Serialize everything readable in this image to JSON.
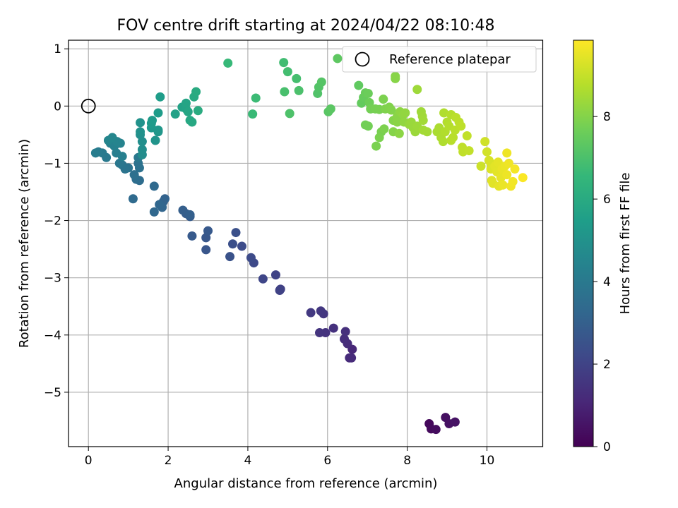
{
  "chart_data": {
    "type": "scatter",
    "title": "FOV centre drift starting at 2024/04/22 08:10:48",
    "xlabel": "Angular distance from reference (arcmin)",
    "ylabel": "Rotation from reference (arcmin)",
    "xlim": [
      -0.5,
      11.4
    ],
    "ylim": [
      -5.95,
      1.15
    ],
    "xticks": [
      "0",
      "2",
      "4",
      "6",
      "8",
      "10"
    ],
    "yticks": [
      "1",
      "0",
      "−1",
      "−2",
      "−3",
      "−4",
      "−5"
    ],
    "grid": true,
    "legend": {
      "label": "Reference platepar",
      "placement": "top-right"
    },
    "reference_point": {
      "x": 0,
      "y": 0
    },
    "colorbar": {
      "label": "Hours from first FF file",
      "range": [
        0,
        9.85
      ],
      "colormap": "viridis",
      "ticks": [
        "0",
        "2",
        "4",
        "6",
        "8"
      ]
    },
    "points": [
      {
        "x": 8.55,
        "y": -5.55,
        "c": 0.2
      },
      {
        "x": 8.6,
        "y": -5.64,
        "c": 0.25
      },
      {
        "x": 8.72,
        "y": -5.65,
        "c": 0.3
      },
      {
        "x": 8.96,
        "y": -5.44,
        "c": 0.4
      },
      {
        "x": 9.05,
        "y": -5.55,
        "c": 0.45
      },
      {
        "x": 9.2,
        "y": -5.52,
        "c": 0.5
      },
      {
        "x": 6.62,
        "y": -4.25,
        "c": 1.1
      },
      {
        "x": 6.6,
        "y": -4.4,
        "c": 1.15
      },
      {
        "x": 6.55,
        "y": -4.4,
        "c": 1.2
      },
      {
        "x": 6.5,
        "y": -4.15,
        "c": 1.25
      },
      {
        "x": 6.42,
        "y": -4.07,
        "c": 1.3
      },
      {
        "x": 6.45,
        "y": -3.94,
        "c": 1.35
      },
      {
        "x": 6.15,
        "y": -3.88,
        "c": 1.4
      },
      {
        "x": 5.95,
        "y": -3.96,
        "c": 1.45
      },
      {
        "x": 5.8,
        "y": -3.96,
        "c": 1.5
      },
      {
        "x": 5.9,
        "y": -3.63,
        "c": 1.55
      },
      {
        "x": 5.83,
        "y": -3.58,
        "c": 1.6
      },
      {
        "x": 5.58,
        "y": -3.61,
        "c": 1.65
      },
      {
        "x": 4.82,
        "y": -3.2,
        "c": 1.9
      },
      {
        "x": 4.8,
        "y": -3.22,
        "c": 1.95
      },
      {
        "x": 4.7,
        "y": -2.95,
        "c": 2.0
      },
      {
        "x": 4.38,
        "y": -3.02,
        "c": 2.1
      },
      {
        "x": 4.15,
        "y": -2.74,
        "c": 2.2
      },
      {
        "x": 4.08,
        "y": -2.65,
        "c": 2.25
      },
      {
        "x": 3.85,
        "y": -2.45,
        "c": 2.3
      },
      {
        "x": 3.62,
        "y": -2.41,
        "c": 2.4
      },
      {
        "x": 3.7,
        "y": -2.21,
        "c": 2.45
      },
      {
        "x": 3.55,
        "y": -2.63,
        "c": 2.5
      },
      {
        "x": 2.95,
        "y": -2.51,
        "c": 2.65
      },
      {
        "x": 2.95,
        "y": -2.3,
        "c": 2.7
      },
      {
        "x": 3.0,
        "y": -2.18,
        "c": 2.75
      },
      {
        "x": 2.6,
        "y": -2.27,
        "c": 2.8
      },
      {
        "x": 2.55,
        "y": -1.93,
        "c": 2.85
      },
      {
        "x": 2.45,
        "y": -1.88,
        "c": 2.9
      },
      {
        "x": 2.37,
        "y": -1.82,
        "c": 2.95
      },
      {
        "x": 2.55,
        "y": -1.9,
        "c": 3.0
      },
      {
        "x": 1.92,
        "y": -1.62,
        "c": 3.1
      },
      {
        "x": 1.88,
        "y": -1.67,
        "c": 3.15
      },
      {
        "x": 1.85,
        "y": -1.77,
        "c": 3.2
      },
      {
        "x": 1.78,
        "y": -1.72,
        "c": 3.25
      },
      {
        "x": 1.65,
        "y": -1.85,
        "c": 3.3
      },
      {
        "x": 1.65,
        "y": -1.4,
        "c": 3.35
      },
      {
        "x": 1.12,
        "y": -1.62,
        "c": 3.4
      },
      {
        "x": 1.28,
        "y": -1.3,
        "c": 3.5
      },
      {
        "x": 1.2,
        "y": -1.28,
        "c": 3.55
      },
      {
        "x": 1.15,
        "y": -1.2,
        "c": 3.6
      },
      {
        "x": 1.28,
        "y": -1.08,
        "c": 3.65
      },
      {
        "x": 1.25,
        "y": -1.0,
        "c": 3.7
      },
      {
        "x": 1.0,
        "y": -1.08,
        "c": 3.75
      },
      {
        "x": 0.92,
        "y": -1.1,
        "c": 3.8
      },
      {
        "x": 0.85,
        "y": -1.03,
        "c": 3.85
      },
      {
        "x": 0.78,
        "y": -1.0,
        "c": 3.9
      },
      {
        "x": 1.25,
        "y": -0.9,
        "c": 3.95
      },
      {
        "x": 0.45,
        "y": -0.9,
        "c": 4.0
      },
      {
        "x": 0.35,
        "y": -0.82,
        "c": 4.05
      },
      {
        "x": 0.25,
        "y": -0.8,
        "c": 4.1
      },
      {
        "x": 0.18,
        "y": -0.82,
        "c": 4.15
      },
      {
        "x": 0.7,
        "y": -0.82,
        "c": 4.2
      },
      {
        "x": 0.85,
        "y": -0.88,
        "c": 4.25
      },
      {
        "x": 0.55,
        "y": -0.65,
        "c": 4.3
      },
      {
        "x": 0.65,
        "y": -0.7,
        "c": 4.35
      },
      {
        "x": 0.8,
        "y": -0.65,
        "c": 4.4
      },
      {
        "x": 0.72,
        "y": -0.62,
        "c": 4.45
      },
      {
        "x": 0.5,
        "y": -0.6,
        "c": 4.5
      },
      {
        "x": 0.6,
        "y": -0.55,
        "c": 4.55
      },
      {
        "x": 1.35,
        "y": -0.85,
        "c": 4.75
      },
      {
        "x": 1.35,
        "y": -0.76,
        "c": 4.8
      },
      {
        "x": 1.35,
        "y": -0.62,
        "c": 4.85
      },
      {
        "x": 1.3,
        "y": -0.5,
        "c": 4.9
      },
      {
        "x": 1.3,
        "y": -0.45,
        "c": 4.95
      },
      {
        "x": 1.3,
        "y": -0.29,
        "c": 5.0
      },
      {
        "x": 1.68,
        "y": -0.6,
        "c": 5.1
      },
      {
        "x": 1.75,
        "y": -0.45,
        "c": 5.15
      },
      {
        "x": 1.75,
        "y": -0.42,
        "c": 5.2
      },
      {
        "x": 1.58,
        "y": -0.38,
        "c": 5.25
      },
      {
        "x": 1.58,
        "y": -0.3,
        "c": 5.3
      },
      {
        "x": 1.6,
        "y": -0.25,
        "c": 5.35
      },
      {
        "x": 1.75,
        "y": -0.12,
        "c": 5.4
      },
      {
        "x": 1.8,
        "y": 0.16,
        "c": 5.45
      },
      {
        "x": 2.18,
        "y": -0.14,
        "c": 5.6
      },
      {
        "x": 2.35,
        "y": -0.02,
        "c": 5.65
      },
      {
        "x": 2.45,
        "y": -0.05,
        "c": 5.7
      },
      {
        "x": 2.45,
        "y": 0.05,
        "c": 5.75
      },
      {
        "x": 2.5,
        "y": -0.1,
        "c": 5.8
      },
      {
        "x": 2.55,
        "y": -0.25,
        "c": 5.85
      },
      {
        "x": 2.6,
        "y": -0.28,
        "c": 5.9
      },
      {
        "x": 2.65,
        "y": 0.16,
        "c": 5.95
      },
      {
        "x": 2.7,
        "y": 0.25,
        "c": 6.0
      },
      {
        "x": 2.75,
        "y": -0.08,
        "c": 6.05
      },
      {
        "x": 3.5,
        "y": 0.75,
        "c": 6.6
      },
      {
        "x": 4.12,
        "y": -0.14,
        "c": 6.65
      },
      {
        "x": 4.2,
        "y": 0.14,
        "c": 6.7
      },
      {
        "x": 4.9,
        "y": 0.76,
        "c": 6.8
      },
      {
        "x": 5.0,
        "y": 0.6,
        "c": 6.85
      },
      {
        "x": 5.22,
        "y": 0.48,
        "c": 6.9
      },
      {
        "x": 4.92,
        "y": 0.25,
        "c": 6.95
      },
      {
        "x": 5.28,
        "y": 0.27,
        "c": 7.0
      },
      {
        "x": 5.05,
        "y": -0.13,
        "c": 7.05
      },
      {
        "x": 5.75,
        "y": 0.22,
        "c": 7.1
      },
      {
        "x": 5.78,
        "y": 0.33,
        "c": 7.15
      },
      {
        "x": 5.85,
        "y": 0.42,
        "c": 7.2
      },
      {
        "x": 6.02,
        "y": -0.1,
        "c": 7.25
      },
      {
        "x": 6.08,
        "y": -0.05,
        "c": 7.3
      },
      {
        "x": 6.25,
        "y": 0.83,
        "c": 7.35
      },
      {
        "x": 6.78,
        "y": 0.36,
        "c": 7.4
      },
      {
        "x": 6.85,
        "y": 0.05,
        "c": 7.45
      },
      {
        "x": 6.9,
        "y": 0.15,
        "c": 7.5
      },
      {
        "x": 6.95,
        "y": 0.23,
        "c": 7.55
      },
      {
        "x": 7.02,
        "y": 0.22,
        "c": 7.6
      },
      {
        "x": 7.05,
        "y": 0.06,
        "c": 7.65
      },
      {
        "x": 6.95,
        "y": -0.33,
        "c": 7.7
      },
      {
        "x": 7.02,
        "y": -0.35,
        "c": 7.72
      },
      {
        "x": 7.08,
        "y": -0.05,
        "c": 7.74
      },
      {
        "x": 7.2,
        "y": -0.05,
        "c": 7.78
      },
      {
        "x": 7.3,
        "y": -0.06,
        "c": 7.8
      },
      {
        "x": 7.35,
        "y": -0.45,
        "c": 7.82
      },
      {
        "x": 7.22,
        "y": -0.7,
        "c": 7.84
      },
      {
        "x": 7.3,
        "y": -0.55,
        "c": 7.86
      },
      {
        "x": 7.4,
        "y": 0.12,
        "c": 7.88
      },
      {
        "x": 7.42,
        "y": -0.4,
        "c": 7.9
      },
      {
        "x": 7.45,
        "y": -0.05,
        "c": 7.92
      },
      {
        "x": 7.55,
        "y": -0.02,
        "c": 7.95
      },
      {
        "x": 7.6,
        "y": -0.07,
        "c": 7.97
      },
      {
        "x": 7.65,
        "y": -0.25,
        "c": 8.0
      },
      {
        "x": 7.65,
        "y": -0.45,
        "c": 8.02
      },
      {
        "x": 7.7,
        "y": 0.48,
        "c": 8.04
      },
      {
        "x": 7.7,
        "y": 0.52,
        "c": 8.06
      },
      {
        "x": 7.75,
        "y": -0.18,
        "c": 8.08
      },
      {
        "x": 7.75,
        "y": -0.28,
        "c": 8.1
      },
      {
        "x": 7.8,
        "y": -0.48,
        "c": 8.12
      },
      {
        "x": 7.82,
        "y": -0.1,
        "c": 8.14
      },
      {
        "x": 7.85,
        "y": -0.12,
        "c": 8.16
      },
      {
        "x": 7.9,
        "y": -0.15,
        "c": 8.18
      },
      {
        "x": 7.92,
        "y": -0.28,
        "c": 8.2
      },
      {
        "x": 7.95,
        "y": -0.12,
        "c": 8.22
      },
      {
        "x": 8.05,
        "y": -0.32,
        "c": 8.3
      },
      {
        "x": 8.1,
        "y": -0.28,
        "c": 8.32
      },
      {
        "x": 8.15,
        "y": -0.38,
        "c": 8.34
      },
      {
        "x": 8.2,
        "y": -0.45,
        "c": 8.36
      },
      {
        "x": 8.25,
        "y": -0.35,
        "c": 8.38
      },
      {
        "x": 8.25,
        "y": 0.29,
        "c": 8.4
      },
      {
        "x": 8.35,
        "y": -0.1,
        "c": 8.42
      },
      {
        "x": 8.38,
        "y": -0.18,
        "c": 8.44
      },
      {
        "x": 8.4,
        "y": -0.25,
        "c": 8.46
      },
      {
        "x": 8.4,
        "y": -0.42,
        "c": 8.48
      },
      {
        "x": 8.5,
        "y": -0.45,
        "c": 8.5
      },
      {
        "x": 8.75,
        "y": -0.45,
        "c": 8.6
      },
      {
        "x": 8.8,
        "y": -0.38,
        "c": 8.62
      },
      {
        "x": 8.85,
        "y": -0.55,
        "c": 8.64
      },
      {
        "x": 8.9,
        "y": -0.62,
        "c": 8.66
      },
      {
        "x": 8.92,
        "y": -0.12,
        "c": 8.68
      },
      {
        "x": 8.95,
        "y": -0.45,
        "c": 8.7
      },
      {
        "x": 9.0,
        "y": -0.28,
        "c": 8.72
      },
      {
        "x": 9.05,
        "y": -0.35,
        "c": 8.74
      },
      {
        "x": 9.1,
        "y": -0.15,
        "c": 8.76
      },
      {
        "x": 9.1,
        "y": -0.6,
        "c": 8.78
      },
      {
        "x": 9.15,
        "y": -0.55,
        "c": 8.8
      },
      {
        "x": 9.2,
        "y": -0.42,
        "c": 8.82
      },
      {
        "x": 9.22,
        "y": -0.2,
        "c": 8.84
      },
      {
        "x": 9.3,
        "y": -0.28,
        "c": 8.86
      },
      {
        "x": 9.35,
        "y": -0.35,
        "c": 8.88
      },
      {
        "x": 9.38,
        "y": -0.72,
        "c": 8.9
      },
      {
        "x": 9.4,
        "y": -0.8,
        "c": 8.92
      },
      {
        "x": 9.5,
        "y": -0.52,
        "c": 8.94
      },
      {
        "x": 9.55,
        "y": -0.78,
        "c": 8.96
      },
      {
        "x": 9.85,
        "y": -1.05,
        "c": 9.1
      },
      {
        "x": 9.95,
        "y": -0.62,
        "c": 9.15
      },
      {
        "x": 10.0,
        "y": -0.8,
        "c": 9.2
      },
      {
        "x": 10.05,
        "y": -0.95,
        "c": 9.25
      },
      {
        "x": 10.1,
        "y": -1.0,
        "c": 9.3
      },
      {
        "x": 10.1,
        "y": -1.1,
        "c": 9.35
      },
      {
        "x": 10.12,
        "y": -1.3,
        "c": 9.4
      },
      {
        "x": 10.15,
        "y": -1.35,
        "c": 9.42
      },
      {
        "x": 10.2,
        "y": -1.05,
        "c": 9.44
      },
      {
        "x": 10.25,
        "y": -1.15,
        "c": 9.46
      },
      {
        "x": 10.28,
        "y": -0.98,
        "c": 9.48
      },
      {
        "x": 10.3,
        "y": -1.4,
        "c": 9.5
      },
      {
        "x": 10.35,
        "y": -1.25,
        "c": 9.52
      },
      {
        "x": 10.38,
        "y": -1.1,
        "c": 9.54
      },
      {
        "x": 10.4,
        "y": -1.38,
        "c": 9.56
      },
      {
        "x": 10.45,
        "y": -1.05,
        "c": 9.58
      },
      {
        "x": 10.5,
        "y": -1.2,
        "c": 9.6
      },
      {
        "x": 10.5,
        "y": -0.82,
        "c": 9.62
      },
      {
        "x": 10.55,
        "y": -1.0,
        "c": 9.64
      },
      {
        "x": 10.6,
        "y": -1.4,
        "c": 9.66
      },
      {
        "x": 10.65,
        "y": -1.32,
        "c": 9.68
      },
      {
        "x": 10.7,
        "y": -1.1,
        "c": 9.72
      },
      {
        "x": 10.9,
        "y": -1.25,
        "c": 9.8
      }
    ]
  }
}
